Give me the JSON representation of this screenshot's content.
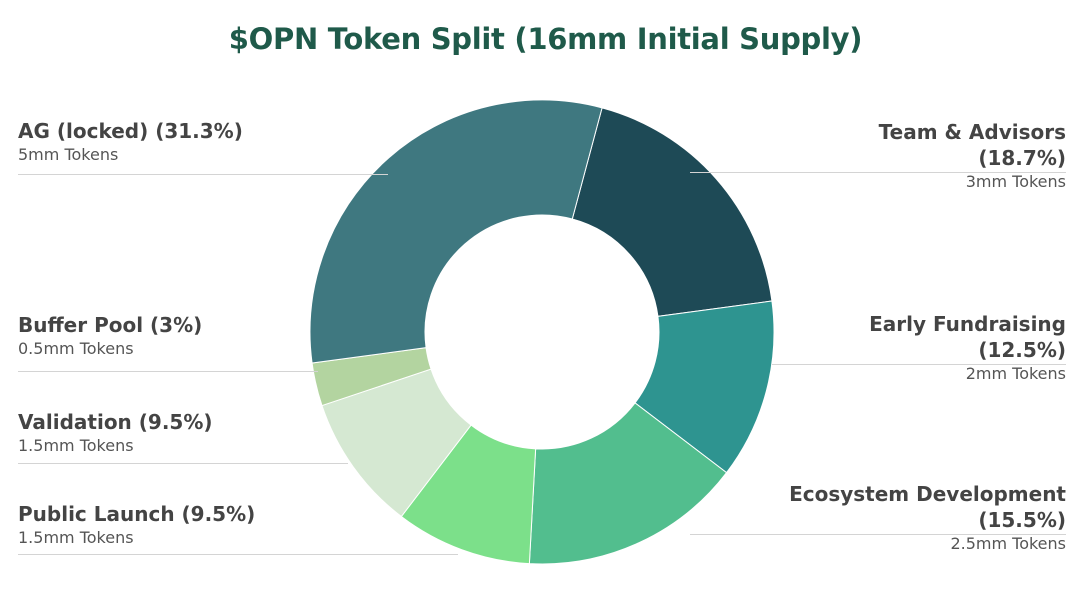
{
  "colors": {
    "title": "#1f5a4a",
    "ag": "#3f7880",
    "team": "#1e4a56",
    "early": "#2e9490",
    "eco": "#52be8e",
    "public": "#7ce08a",
    "validation": "#d5e8d2",
    "buffer": "#b3d4a0"
  },
  "chart_data": {
    "type": "pie",
    "donut": true,
    "title": "$OPN Token Split (16mm Initial Supply)",
    "slices": [
      {
        "key": "team",
        "name": "Team & Advisors",
        "pct_label": "(18.7%)",
        "sub": "3mm Tokens",
        "value": 18.7
      },
      {
        "key": "early",
        "name": "Early Fundraising",
        "pct_label": "(12.5%)",
        "sub": "2mm Tokens",
        "value": 12.5
      },
      {
        "key": "eco",
        "name": "Ecosystem Development",
        "pct_label": "(15.5%)",
        "sub": "2.5mm Tokens",
        "value": 15.5
      },
      {
        "key": "public",
        "name": "Public Launch (9.5%)",
        "sub": "1.5mm Tokens",
        "value": 9.5
      },
      {
        "key": "validation",
        "name": "Validation (9.5%)",
        "sub": "1.5mm Tokens",
        "value": 9.5
      },
      {
        "key": "buffer",
        "name": "Buffer Pool (3%)",
        "sub": "0.5mm Tokens",
        "value": 3
      },
      {
        "key": "ag",
        "name": "AG (locked) (31.3%)",
        "sub": "5mm Tokens",
        "value": 31.3
      }
    ]
  }
}
